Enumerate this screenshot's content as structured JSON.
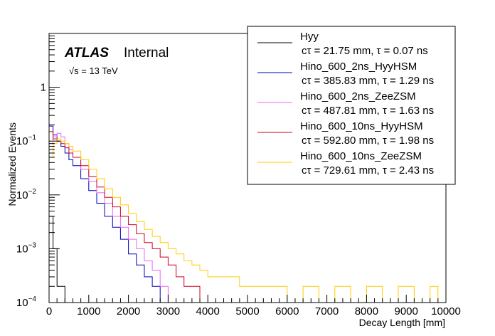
{
  "colors": {
    "Hyy": "#000000",
    "Hino_600_2ns_HyyHSM": "#0000c0",
    "Hino_600_2ns_ZeeZSM": "#ee66ee",
    "Hino_600_10ns_HyyHSM": "#cc0022",
    "Hino_600_10ns_ZeeZSM": "#ffcc00"
  },
  "label": {
    "atlas": "ATLAS",
    "internal": "Internal",
    "energy": "√s = 13 TeV"
  },
  "chart_data": {
    "type": "line",
    "xlabel": "Decay Length [mm]",
    "ylabel": "Normalized Events",
    "xlim": [
      0,
      10000
    ],
    "ylim": [
      0.0001,
      10
    ],
    "yscale": "log",
    "grid": false,
    "legend": "top-right",
    "x_ticks": [
      {
        "v": 0,
        "label": "0"
      },
      {
        "v": 1000,
        "label": "1000"
      },
      {
        "v": 2000,
        "label": "2000"
      },
      {
        "v": 3000,
        "label": "3000"
      },
      {
        "v": 4000,
        "label": "4000"
      },
      {
        "v": 5000,
        "label": "5000"
      },
      {
        "v": 6000,
        "label": "6000"
      },
      {
        "v": 7000,
        "label": "7000"
      },
      {
        "v": 8000,
        "label": "8000"
      },
      {
        "v": 9000,
        "label": "9000"
      },
      {
        "v": 10000,
        "label": "10000"
      }
    ],
    "y_ticks": [
      {
        "v": 0.0001,
        "base": "10",
        "exp": "−4"
      },
      {
        "v": 0.001,
        "base": "10",
        "exp": "−3"
      },
      {
        "v": 0.01,
        "base": "10",
        "exp": "−2"
      },
      {
        "v": 0.1,
        "base": "10",
        "exp": "−1"
      },
      {
        "v": 1,
        "base": "1",
        "exp": ""
      }
    ],
    "series": [
      {
        "name": "Hyy",
        "subtitle": "cτ = 21.75 mm, τ = 0.07 ns",
        "x": [
          0,
          100,
          200,
          400,
          600,
          800,
          1000,
          1200,
          1400,
          1600,
          1800,
          2000,
          2200,
          2400,
          2600,
          2800
        ],
        "y": [
          0.004,
          0.001,
          0.0002,
          0.0001,
          0.0001,
          0.0001,
          0.0001,
          0.0001,
          0.0001,
          0.0001,
          0.0001,
          0.0001,
          0.0001,
          0.0001,
          0.0001,
          0.0001
        ]
      },
      {
        "name": "Hino_600_2ns_HyyHSM",
        "subtitle": "cτ = 385.83 mm, τ = 1.29 ns",
        "x": [
          0,
          100,
          200,
          300,
          400,
          500,
          600,
          800,
          1000,
          1200,
          1400,
          1600,
          1800,
          2000,
          2200,
          2400,
          2600,
          2800
        ],
        "y": [
          0.19,
          0.13,
          0.1,
          0.08,
          0.06,
          0.045,
          0.035,
          0.02,
          0.012,
          0.007,
          0.004,
          0.0025,
          0.0015,
          0.0008,
          0.0005,
          0.0003,
          0.0002,
          0.0001
        ]
      },
      {
        "name": "Hino_600_2ns_ZeeZSM",
        "subtitle": "cτ = 487.81 mm, τ = 1.63 ns",
        "x": [
          0,
          100,
          200,
          300,
          400,
          500,
          600,
          800,
          1000,
          1200,
          1400,
          1600,
          1800,
          2000,
          2200,
          2400,
          2600,
          2800,
          3000
        ],
        "y": [
          0.06,
          0.12,
          0.14,
          0.12,
          0.09,
          0.07,
          0.05,
          0.03,
          0.018,
          0.011,
          0.007,
          0.004,
          0.0025,
          0.0015,
          0.001,
          0.0006,
          0.0004,
          0.0002,
          0.0001
        ]
      },
      {
        "name": "Hino_600_10ns_HyyHSM",
        "subtitle": "cτ = 592.80 mm, τ = 1.98 ns",
        "x": [
          0,
          100,
          200,
          300,
          400,
          500,
          600,
          800,
          1000,
          1200,
          1400,
          1600,
          1800,
          2000,
          2200,
          2400,
          2600,
          2800,
          3000,
          3200,
          3400,
          3600,
          3800
        ],
        "y": [
          0.15,
          0.11,
          0.1,
          0.09,
          0.075,
          0.06,
          0.05,
          0.035,
          0.022,
          0.014,
          0.009,
          0.006,
          0.004,
          0.0028,
          0.0019,
          0.0013,
          0.001,
          0.0007,
          0.0005,
          0.0003,
          0.0002,
          0.0002,
          0.0001
        ]
      },
      {
        "name": "Hino_600_10ns_ZeeZSM",
        "subtitle": "cτ = 729.61 mm, τ = 2.43 ns",
        "x": [
          0,
          100,
          200,
          300,
          400,
          500,
          600,
          800,
          1000,
          1200,
          1400,
          1600,
          1800,
          2000,
          2200,
          2400,
          2600,
          2800,
          3000,
          3200,
          3400,
          3600,
          3800,
          4000,
          4400,
          4800,
          5200,
          5600,
          6000,
          6400,
          6800,
          7200,
          7600,
          8000,
          8400,
          8800,
          9200,
          9600,
          9800
        ],
        "y": [
          0.05,
          0.09,
          0.11,
          0.1,
          0.09,
          0.08,
          0.065,
          0.045,
          0.03,
          0.02,
          0.013,
          0.009,
          0.0065,
          0.0045,
          0.0032,
          0.0023,
          0.0017,
          0.0013,
          0.001,
          0.0008,
          0.0006,
          0.0005,
          0.0004,
          0.0003,
          0.0003,
          0.0002,
          0.0002,
          0.0002,
          0.0001,
          0.0002,
          0.0001,
          0.0002,
          0.0001,
          0.0002,
          0.0001,
          0.0002,
          0.0001,
          0.0002,
          0.0001
        ]
      }
    ]
  }
}
